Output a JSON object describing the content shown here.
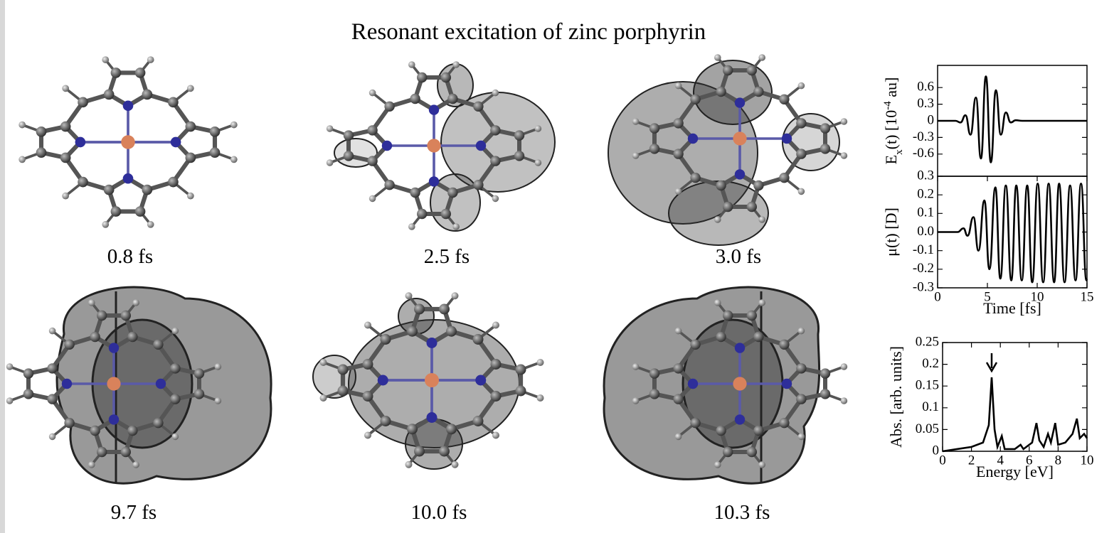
{
  "title": "Resonant excitation of zinc porphyrin",
  "panels": [
    "0.8 fs",
    "2.5 fs",
    "3.0 fs",
    "9.7 fs",
    "10.0 fs",
    "10.3 fs"
  ],
  "chart_data": [
    {
      "type": "line",
      "ylabel": [
        "E",
        "x",
        "(t) [10",
        "-4",
        " au]"
      ],
      "color": "#000000",
      "x": [
        0,
        1.8,
        2.3,
        2.8,
        3.3,
        3.85,
        4.35,
        4.85,
        5.35,
        5.85,
        6.35,
        6.85,
        7.35,
        7.85,
        8.5,
        15
      ],
      "values": [
        0,
        0,
        -0.03,
        0.1,
        -0.25,
        0.42,
        -0.68,
        0.8,
        -0.75,
        0.55,
        -0.25,
        0.15,
        -0.03,
        0.01,
        0,
        0
      ],
      "xlim": [
        0,
        15
      ],
      "ylim": [
        -1,
        1
      ],
      "yticks": [
        -0.6,
        -0.3,
        0,
        0.3,
        0.6
      ]
    },
    {
      "type": "line",
      "ylabel": "μ(t) [D]",
      "xlabel": "Time [fs]",
      "color": "#000000",
      "x": [
        0,
        2,
        2.6,
        3.0,
        3.6,
        4.1,
        4.7,
        5.2,
        5.8,
        6.3,
        6.85,
        7.4,
        7.9,
        8.45,
        9.0,
        9.5,
        10.05,
        10.6,
        11.15,
        11.7,
        12.2,
        12.75,
        13.3,
        13.85,
        14.4,
        14.95,
        15
      ],
      "values": [
        0,
        0,
        0.02,
        -0.02,
        0.08,
        -0.1,
        0.17,
        -0.2,
        0.24,
        -0.25,
        0.25,
        -0.26,
        0.25,
        -0.26,
        0.25,
        -0.27,
        0.26,
        -0.27,
        0.26,
        -0.27,
        0.26,
        -0.27,
        0.25,
        -0.26,
        0.26,
        -0.26,
        -0.25
      ],
      "xlim": [
        0,
        15
      ],
      "ylim": [
        -0.3,
        0.3
      ],
      "xticks": [
        0,
        5,
        10,
        15
      ],
      "yticks": [
        -0.3,
        -0.2,
        -0.1,
        {
          "value": 0,
          "label": "0.0"
        },
        0.1,
        0.2,
        0.3
      ]
    },
    {
      "type": "line",
      "ylabel": "Abs. [arb. units]",
      "xlabel": "Energy [eV]",
      "color": "#000000",
      "x": [
        0,
        1,
        2,
        2.8,
        3.2,
        3.4,
        3.6,
        3.8,
        4.1,
        4.3,
        5,
        5.4,
        5.6,
        6.2,
        6.5,
        6.7,
        7,
        7.3,
        7.5,
        7.8,
        8,
        8.5,
        9,
        9.3,
        9.5,
        9.8,
        10
      ],
      "values": [
        0,
        0.005,
        0.01,
        0.02,
        0.06,
        0.17,
        0.05,
        0.01,
        0.035,
        0.005,
        0.005,
        0.015,
        0.005,
        0.02,
        0.065,
        0.025,
        0.01,
        0.04,
        0.02,
        0.065,
        0.015,
        0.02,
        0.04,
        0.075,
        0.03,
        0.04,
        0.03
      ],
      "xlim": [
        0,
        10
      ],
      "ylim": [
        0,
        0.25
      ],
      "xticks": [
        0,
        2,
        4,
        6,
        8,
        10
      ],
      "yticks": [
        0,
        0.05,
        0.1,
        0.15,
        0.2,
        0.25
      ]
    }
  ]
}
